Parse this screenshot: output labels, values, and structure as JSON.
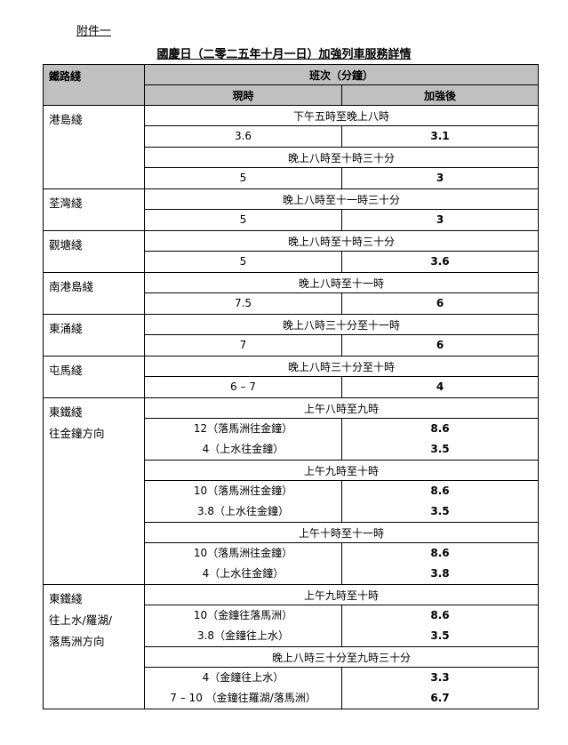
{
  "annex": "附件一",
  "title": "國慶日（二零二五年十月一日）加強列車服務詳情",
  "header": {
    "line": "鐵路綫",
    "headway": "班次（分鐘）",
    "current": "現時",
    "enhanced": "加強後"
  },
  "lines": [
    {
      "name": [
        "港島綫"
      ],
      "blocks": [
        {
          "period": "下午五時至晚上八時",
          "rows": [
            {
              "current": "3.6",
              "enhanced": "3.1"
            }
          ]
        },
        {
          "period": "晚上八時至十時三十分",
          "rows": [
            {
              "current": "5",
              "enhanced": "3"
            }
          ]
        }
      ]
    },
    {
      "name": [
        "荃灣綫"
      ],
      "blocks": [
        {
          "period": "晚上八時至十一時三十分",
          "rows": [
            {
              "current": "5",
              "enhanced": "3"
            }
          ]
        }
      ]
    },
    {
      "name": [
        "觀塘綫"
      ],
      "blocks": [
        {
          "period": "晚上八時至十時三十分",
          "rows": [
            {
              "current": "5",
              "enhanced": "3.6"
            }
          ]
        }
      ]
    },
    {
      "name": [
        "南港島綫"
      ],
      "blocks": [
        {
          "period": "晚上八時至十一時",
          "rows": [
            {
              "current": "7.5",
              "enhanced": "6"
            }
          ]
        }
      ]
    },
    {
      "name": [
        "東涌綫"
      ],
      "blocks": [
        {
          "period": "晚上八時三十分至十一時",
          "rows": [
            {
              "current": "7",
              "enhanced": "6"
            }
          ]
        }
      ]
    },
    {
      "name": [
        "屯馬綫"
      ],
      "blocks": [
        {
          "period": "晚上八時三十分至十時",
          "rows": [
            {
              "current": "6 – 7",
              "enhanced": "4"
            }
          ]
        }
      ]
    },
    {
      "name": [
        "東鐵綫",
        "往金鐘方向"
      ],
      "blocks": [
        {
          "period": "上午八時至九時",
          "rows": [
            {
              "current": "12（落馬洲往金鐘）",
              "enhanced": "8.6"
            },
            {
              "current": "4（上水往金鐘）",
              "enhanced": "3.5"
            }
          ]
        },
        {
          "period": "上午九時至十時",
          "rows": [
            {
              "current": "10（落馬洲往金鐘）",
              "enhanced": "8.6"
            },
            {
              "current": "3.8（上水往金鐘）",
              "enhanced": "3.5"
            }
          ]
        },
        {
          "period": "上午十時至十一時",
          "rows": [
            {
              "current": "10（落馬洲往金鐘）",
              "enhanced": "8.6"
            },
            {
              "current": "4（上水往金鐘）",
              "enhanced": "3.8"
            }
          ]
        }
      ]
    },
    {
      "name": [
        "東鐵綫",
        "往上水/羅湖/",
        "落馬洲方向"
      ],
      "blocks": [
        {
          "period": "上午九時至十時",
          "rows": [
            {
              "current": "10（金鐘往落馬洲）",
              "enhanced": "8.6"
            },
            {
              "current": "3.8（金鐘往上水）",
              "enhanced": "3.5"
            }
          ]
        },
        {
          "period": "晚上八時三十分至九時三十分",
          "rows": [
            {
              "current": "4（金鐘往上水）",
              "enhanced": "3.3"
            },
            {
              "current": "7 – 10 （金鐘往羅湖/落馬洲）",
              "enhanced": "6.7"
            }
          ]
        }
      ]
    }
  ]
}
